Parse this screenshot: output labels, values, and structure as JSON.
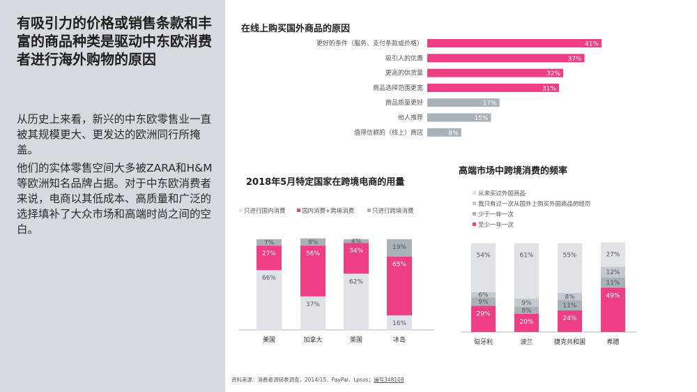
{
  "left": {
    "headline": "有吸引力的价格或销售条款和丰富的商品种类是驱动中东欧消费者进行海外购物的原因",
    "para1": "从历史上来看，新兴的中东欧零售业一直被其规模更大、更发达的欧洲同行所掩盖。",
    "para2": "他们的实体零售空间大多被ZARA和H&M等欧洲知名品牌占据。对于中东欧消费者来说，电商以其低成本、高质量和广泛的选择填补了大众市场和高端时尚之间的空白。"
  },
  "colors": {
    "pink": "#ee3f85",
    "gray_light": "#dfe3e8",
    "gray_mid": "#a9b1b9",
    "gray_dark": "#8f969d",
    "panel": "#d4dadf"
  },
  "chart_data": [
    {
      "type": "bar",
      "orientation": "horizontal",
      "title": "在线上购买国外商品的原因",
      "categories": [
        "更好的条件（服务、支付条款或价格）",
        "吸引人的优惠",
        "更高的供货量",
        "商品选择范围更宽",
        "商品质量更好",
        "他人推荐",
        "值得信赖的（线上）商店"
      ],
      "values": [
        41,
        37,
        32,
        31,
        17,
        15,
        8
      ],
      "value_labels": [
        "41%",
        "37%",
        "32%",
        "31%",
        "17%",
        "15%",
        "8%"
      ],
      "colors": [
        "#ee3f85",
        "#ee3f85",
        "#ee3f85",
        "#ee3f85",
        "#a9b1b9",
        "#a9b1b9",
        "#a9b1b9"
      ],
      "xlim": [
        0,
        45
      ]
    },
    {
      "type": "bar",
      "stacked": true,
      "title": "2018年5月特定国家在跨境电商的用量",
      "categories": [
        "美国",
        "加拿大",
        "英国",
        "冰岛"
      ],
      "series": [
        {
          "name": "只进行国内消费",
          "values": [
            66,
            37,
            62,
            16
          ],
          "labels": [
            "66%",
            "37%",
            "62%",
            "16%"
          ],
          "color": "#dfe3e8"
        },
        {
          "name": "国内消费+跨境消费",
          "values": [
            27,
            56,
            34,
            65
          ],
          "labels": [
            "27%",
            "56%",
            "34%",
            "65%"
          ],
          "color": "#ee3f85"
        },
        {
          "name": "只进行跨境消费",
          "values": [
            7,
            8,
            4,
            19
          ],
          "labels": [
            "7%",
            "8%",
            "4%",
            "19%"
          ],
          "color": "#a9b1b9"
        }
      ],
      "ylim": [
        0,
        100
      ]
    },
    {
      "type": "bar",
      "stacked": true,
      "title": "高端市场中跨境消费的频率",
      "categories": [
        "匈牙利",
        "波兰",
        "捷克共和国",
        "希腊"
      ],
      "series": [
        {
          "name": "至少一年一次",
          "values": [
            29,
            20,
            24,
            49
          ],
          "labels": [
            "29%",
            "20%",
            "24%",
            "49%"
          ],
          "color": "#ee3f85"
        },
        {
          "name": "少于一年一次",
          "values": [
            9,
            8,
            11,
            11
          ],
          "labels": [
            "9%",
            "8%",
            "11%",
            "11%"
          ],
          "color": "#a9b1b9"
        },
        {
          "name": "我只有过一次从国外上购买外国商品的经历",
          "values": [
            6,
            9,
            8,
            12
          ],
          "labels": [
            "6%",
            "9%",
            "8%",
            "12%"
          ],
          "color": "#c3c9cf"
        },
        {
          "name": "从未买过外国商品",
          "values": [
            54,
            61,
            55,
            27
          ],
          "labels": [
            "54%",
            "61%",
            "55%",
            "27%"
          ],
          "color": "#dfe3e8"
        }
      ],
      "legend_order": [
        "从未买过外国商品",
        "我只有过一次从国外上购买外国商品的经历",
        "少于一年一次",
        "至少一年一次"
      ],
      "ylim": [
        0,
        100
      ]
    }
  ],
  "source": {
    "prefix": "资料来源：消费者调研表调查，2014/15、PayPal、Lpsos；",
    "link": "编号348108"
  }
}
